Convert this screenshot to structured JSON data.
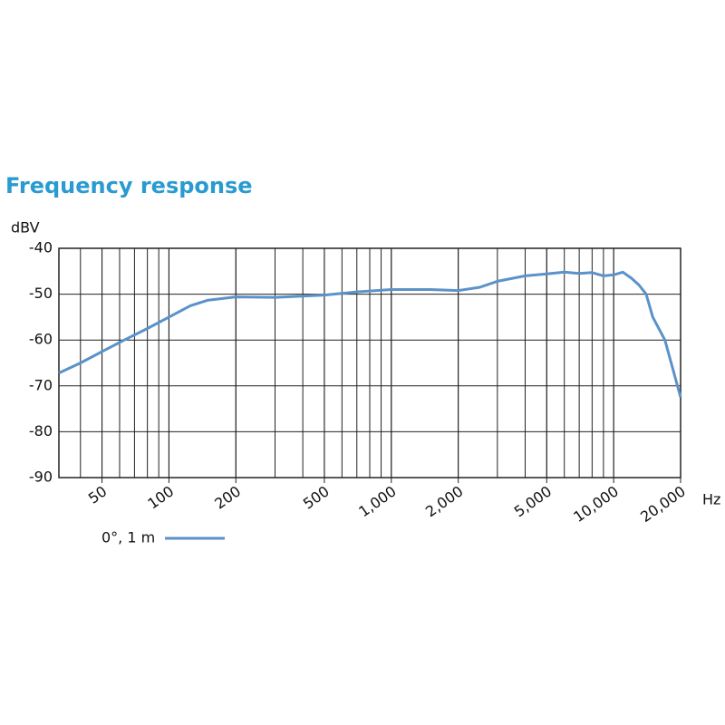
{
  "chart_data": {
    "type": "line",
    "title": "Frequency response",
    "y_label": "dBV",
    "x_label": "Hz",
    "log_x": true,
    "grid": true,
    "xlim": [
      32,
      20000
    ],
    "ylim": [
      -90,
      -40
    ],
    "yticks": [
      -90,
      -80,
      -70,
      -60,
      -50,
      -40
    ],
    "xticks": [
      50,
      100,
      200,
      500,
      {
        "value": 1000,
        "label": "1,000"
      },
      {
        "value": 2000,
        "label": "2,000"
      },
      {
        "value": 5000,
        "label": "5,000"
      },
      {
        "value": 10000,
        "label": "10,000"
      },
      {
        "value": 20000,
        "label": "20,000"
      }
    ],
    "x": [
      32,
      40,
      50,
      63,
      80,
      100,
      125,
      150,
      200,
      300,
      500,
      700,
      1000,
      1500,
      2000,
      2500,
      3000,
      4000,
      5000,
      6000,
      7000,
      8000,
      9000,
      10000,
      11000,
      12000,
      13000,
      14000,
      15000,
      17000,
      20000
    ],
    "series": [
      {
        "name": "0°, 1 m",
        "color": "#5b92c9",
        "values": [
          -67.2,
          -65,
          -62.5,
          -60,
          -57.5,
          -55,
          -52.5,
          -51.3,
          -50.6,
          -50.7,
          -50.2,
          -49.5,
          -49,
          -49,
          -49.2,
          -48.5,
          -47.2,
          -46,
          -45.6,
          -45.2,
          -45.5,
          -45.3,
          -46,
          -45.8,
          -45.2,
          -46.5,
          -48,
          -50,
          -55,
          -60,
          -72.5
        ]
      }
    ]
  }
}
